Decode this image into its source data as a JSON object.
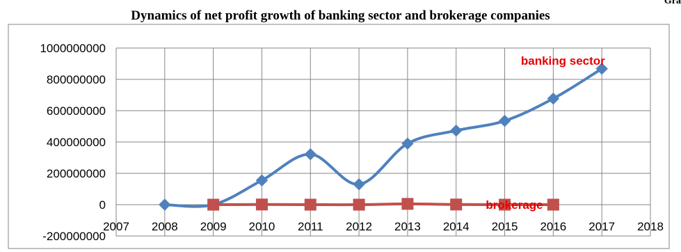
{
  "page": {
    "corner_text": "Gra"
  },
  "chart_data": {
    "type": "line",
    "title": "Dynamics of net profit growth of banking sector and brokerage companies",
    "xlabel": "",
    "ylabel": "",
    "x_ticks": [
      2007,
      2008,
      2009,
      2010,
      2011,
      2012,
      2013,
      2014,
      2015,
      2016,
      2017,
      2018
    ],
    "y_ticks": [
      -200000000,
      0,
      200000000,
      400000000,
      600000000,
      800000000,
      1000000000
    ],
    "xlim": [
      2007,
      2018
    ],
    "ylim": [
      -200000000,
      1000000000
    ],
    "grid": true,
    "series": [
      {
        "name": "banking sector",
        "color": "#4f81bd",
        "marker": "diamond",
        "smooth": true,
        "points": [
          {
            "x": 2008,
            "y": 0
          },
          {
            "x": 2009,
            "y": 0
          },
          {
            "x": 2010,
            "y": 155000000
          },
          {
            "x": 2011,
            "y": 322000000
          },
          {
            "x": 2012,
            "y": 130000000
          },
          {
            "x": 2013,
            "y": 390000000
          },
          {
            "x": 2014,
            "y": 473000000
          },
          {
            "x": 2015,
            "y": 535000000
          },
          {
            "x": 2016,
            "y": 677000000
          },
          {
            "x": 2017,
            "y": 868000000
          }
        ]
      },
      {
        "name": "brokerage",
        "color": "#c0504d",
        "marker": "square",
        "smooth": true,
        "points": [
          {
            "x": 2009,
            "y": 0
          },
          {
            "x": 2010,
            "y": 1000000
          },
          {
            "x": 2011,
            "y": 0
          },
          {
            "x": 2012,
            "y": 0
          },
          {
            "x": 2013,
            "y": 5000000
          },
          {
            "x": 2014,
            "y": 1000000
          },
          {
            "x": 2015,
            "y": 0
          },
          {
            "x": 2016,
            "y": 0
          }
        ]
      }
    ],
    "annotations": [
      {
        "text": "banking sector",
        "color": "#e60000",
        "x": 2016.2,
        "y": 920000000
      },
      {
        "text": "brokerage",
        "color": "#e60000",
        "x": 2015.2,
        "y": 0
      }
    ],
    "colors": {
      "grid": "#868686",
      "axis_text": "#000000",
      "frame": "#868686"
    }
  }
}
